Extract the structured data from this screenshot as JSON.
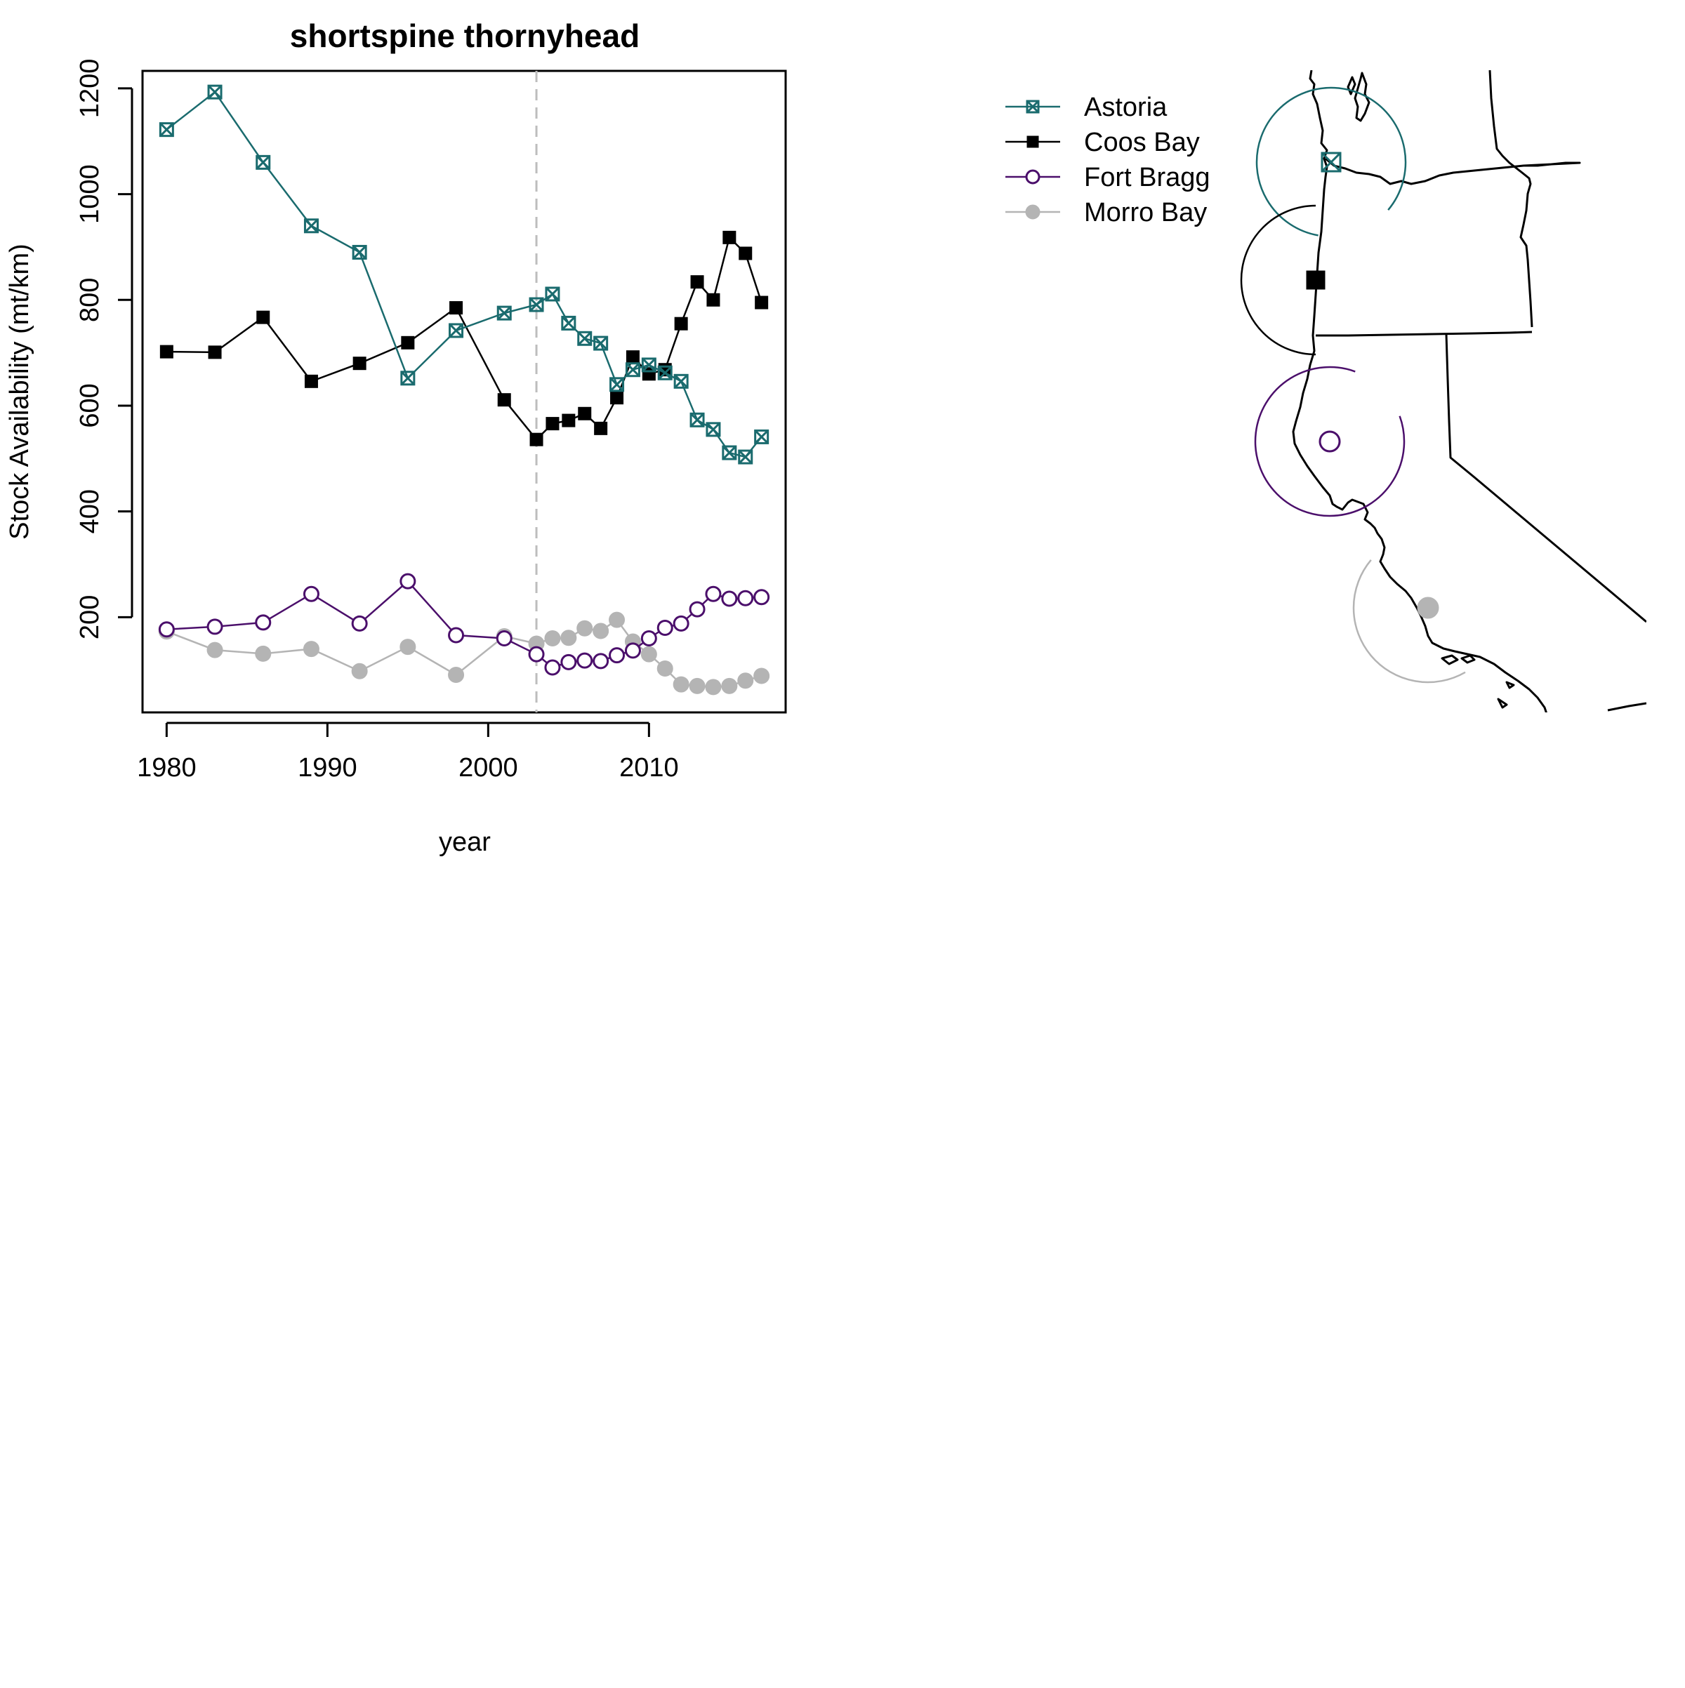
{
  "chart_data": {
    "type": "line",
    "title": "shortspine thornyhead",
    "xlabel": "year",
    "ylabel": "Stock Availability (mt/km)",
    "xlim": [
      1978.5,
      2018.5
    ],
    "ylim": [
      20,
      1233
    ],
    "xticks": [
      1980,
      1990,
      2000,
      2010
    ],
    "yticks": [
      200,
      400,
      600,
      800,
      1000,
      1200
    ],
    "reference_line": {
      "x": 2003,
      "style": "dashed",
      "color": "#bdbdbd"
    },
    "grid": false,
    "legend_position": "top-right, outside plot area",
    "x": [
      1980,
      1983,
      1986,
      1989,
      1992,
      1995,
      1998,
      2001,
      2003,
      2004,
      2005,
      2006,
      2007,
      2008,
      2009,
      2010,
      2011,
      2012,
      2013,
      2014,
      2015,
      2016,
      2017
    ],
    "series": [
      {
        "name": "Astoria",
        "color": "#1a6b6e",
        "marker": "square-with-x",
        "values": [
          1122,
          1193,
          1060,
          940,
          890,
          652,
          742,
          775,
          791,
          811,
          756,
          727,
          718,
          640,
          668,
          677,
          662,
          646,
          573,
          555,
          511,
          503,
          541
        ]
      },
      {
        "name": "Coos Bay",
        "color": "#000000",
        "marker": "filled-square",
        "values": [
          702,
          701,
          767,
          646,
          680,
          719,
          785,
          611,
          536,
          566,
          572,
          585,
          557,
          615,
          692,
          660,
          668,
          755,
          834,
          800,
          918,
          888,
          795
        ]
      },
      {
        "name": "Fort Bragg",
        "color": "#4b0f6b",
        "marker": "open-circle",
        "values": [
          177,
          182,
          190,
          244,
          188,
          268,
          166,
          160,
          130,
          105,
          115,
          118,
          117,
          128,
          137,
          160,
          180,
          188,
          215,
          244,
          235,
          236,
          238
        ]
      },
      {
        "name": "Morro Bay",
        "color": "#b4b4b4",
        "marker": "filled-circle",
        "values": [
          173,
          138,
          131,
          140,
          98,
          144,
          91,
          164,
          150,
          160,
          161,
          179,
          174,
          195,
          154,
          130,
          103,
          73,
          70,
          68,
          70,
          80,
          89
        ]
      }
    ]
  },
  "map": {
    "description_free": true,
    "markers": [
      {
        "name": "Astoria",
        "color": "#1a6b6e",
        "marker": "square-with-x"
      },
      {
        "name": "Coos Bay",
        "color": "#000000",
        "marker": "filled-square"
      },
      {
        "name": "Fort Bragg",
        "color": "#4b0f6b",
        "marker": "open-circle"
      },
      {
        "name": "Morro Bay",
        "color": "#b4b4b4",
        "marker": "filled-circle"
      }
    ]
  }
}
